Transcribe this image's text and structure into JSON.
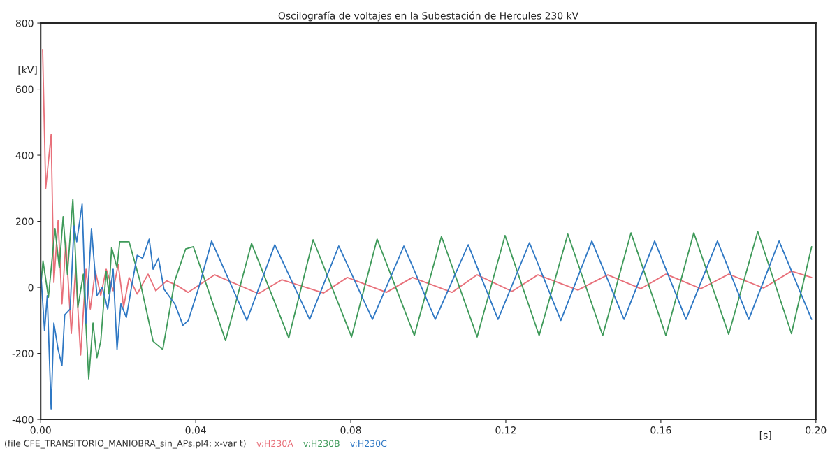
{
  "chart_data": {
    "type": "line",
    "title": "Oscilografía de voltajes en la Subestación de Hercules 230 kV",
    "ylabel": "[kV]",
    "xlabel": "[s]",
    "xlim": [
      0,
      0.2
    ],
    "xticks": [
      {
        "value": 0,
        "label": "0.00"
      },
      0.04,
      0.08,
      0.12,
      0.16,
      {
        "value": 0.2,
        "label": "0.20"
      }
    ],
    "ylim": [
      -400,
      800
    ],
    "yticks": [
      -400,
      -200,
      0,
      200,
      400,
      600,
      800
    ],
    "grid": false,
    "legend": "bottom",
    "line_style": "solid",
    "marker": "none",
    "annotations": [
      "(file CFE_TRANSITORIO_MANIOBRA_sin_APs.pl4; x-var t)"
    ],
    "series": [
      {
        "name": "v:H230A",
        "color": "#e8707a",
        "x": [
          0.0005,
          0.0013,
          0.0027,
          0.0034,
          0.0045,
          0.0055,
          0.0065,
          0.0079,
          0.009,
          0.0103,
          0.0117,
          0.0128,
          0.0141,
          0.0155,
          0.0169,
          0.0187,
          0.02,
          0.0214,
          0.0228,
          0.0249,
          0.0277,
          0.0297,
          0.0325,
          0.0353,
          0.038,
          0.0449,
          0.0562,
          0.0622,
          0.073,
          0.0791,
          0.0892,
          0.0959,
          0.1061,
          0.1126,
          0.1216,
          0.1283,
          0.1386,
          0.1463,
          0.1548,
          0.1613,
          0.1703,
          0.1775,
          0.1865,
          0.1937,
          0.1989
        ],
        "values": [
          720,
          300,
          463,
          15,
          203,
          -50,
          138,
          -140,
          55,
          -205,
          55,
          -66,
          50,
          -25,
          55,
          -10,
          70,
          -60,
          30,
          -20,
          40,
          -10,
          20,
          5,
          -15,
          38,
          -19,
          23,
          -17,
          30,
          -15,
          30,
          -15,
          38,
          -12,
          38,
          -8,
          38,
          -4,
          40,
          -4,
          40,
          -2,
          49,
          30
        ]
      },
      {
        "name": "v:H230B",
        "color": "#3f9a5a",
        "x": [
          0.0,
          0.0006,
          0.002,
          0.0037,
          0.0048,
          0.0058,
          0.0069,
          0.0083,
          0.0096,
          0.011,
          0.0124,
          0.0135,
          0.0145,
          0.0155,
          0.0169,
          0.0176,
          0.0183,
          0.0197,
          0.0204,
          0.0228,
          0.0256,
          0.029,
          0.0315,
          0.0346,
          0.0374,
          0.0394,
          0.0477,
          0.0544,
          0.064,
          0.0703,
          0.0802,
          0.0868,
          0.0964,
          0.1034,
          0.1126,
          0.1198,
          0.1286,
          0.136,
          0.145,
          0.1523,
          0.1613,
          0.1685,
          0.1775,
          0.185,
          0.1937,
          0.1989
        ],
        "values": [
          0,
          80,
          -30,
          178,
          60,
          214,
          40,
          267,
          -60,
          40,
          -277,
          -108,
          -213,
          -163,
          49,
          -20,
          121,
          60,
          138,
          138,
          20,
          -163,
          -188,
          20,
          116,
          123,
          -161,
          133,
          -153,
          144,
          -150,
          146,
          -146,
          154,
          -150,
          157,
          -146,
          161,
          -146,
          165,
          -146,
          165,
          -142,
          169,
          -140,
          123
        ]
      },
      {
        "name": "v:H230C",
        "color": "#2f78c4",
        "x": [
          0.0,
          0.001,
          0.0017,
          0.0027,
          0.0034,
          0.0045,
          0.0055,
          0.0062,
          0.0076,
          0.0086,
          0.0093,
          0.0107,
          0.0117,
          0.0131,
          0.0145,
          0.0159,
          0.0173,
          0.0187,
          0.0197,
          0.0207,
          0.0221,
          0.0235,
          0.0249,
          0.0263,
          0.028,
          0.029,
          0.0304,
          0.0318,
          0.0346,
          0.0367,
          0.0381,
          0.0408,
          0.0441,
          0.0532,
          0.0604,
          0.0694,
          0.0769,
          0.0856,
          0.0937,
          0.1018,
          0.1103,
          0.118,
          0.1261,
          0.1342,
          0.1422,
          0.1505,
          0.1584,
          0.1665,
          0.1746,
          0.1827,
          0.1905,
          0.1989
        ],
        "values": [
          50,
          -131,
          -25,
          -368,
          -108,
          -188,
          -237,
          -83,
          -66,
          186,
          138,
          252,
          -108,
          178,
          -25,
          0,
          -66,
          55,
          -188,
          -50,
          -91,
          6,
          97,
          88,
          146,
          55,
          88,
          -5,
          -50,
          -115,
          -100,
          0,
          140,
          -100,
          129,
          -97,
          125,
          -97,
          125,
          -97,
          129,
          -97,
          135,
          -100,
          140,
          -97,
          140,
          -97,
          140,
          -97,
          140,
          -97
        ]
      }
    ]
  }
}
